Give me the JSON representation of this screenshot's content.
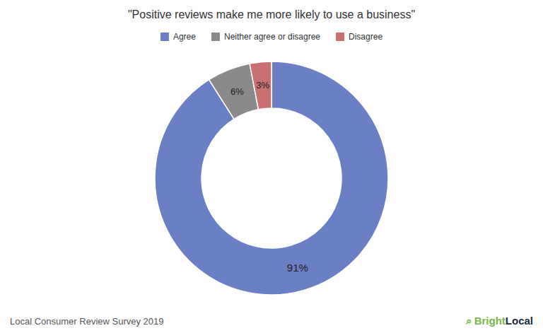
{
  "chart_data": {
    "type": "donut",
    "title": "\"Positive reviews make me more likely to use a business\"",
    "categories": [
      "Agree",
      "Neither agree or disagree",
      "Disagree"
    ],
    "values": [
      91,
      6,
      3
    ],
    "value_labels": [
      "91%",
      "6%",
      "3%"
    ],
    "colors": [
      "#6b80c4",
      "#8a8a8a",
      "#c97070"
    ],
    "data_labels": true,
    "legend": "top",
    "annotations": [
      "Local Consumer Review Survey 2019",
      "⌕",
      "Bright",
      "Local"
    ]
  }
}
